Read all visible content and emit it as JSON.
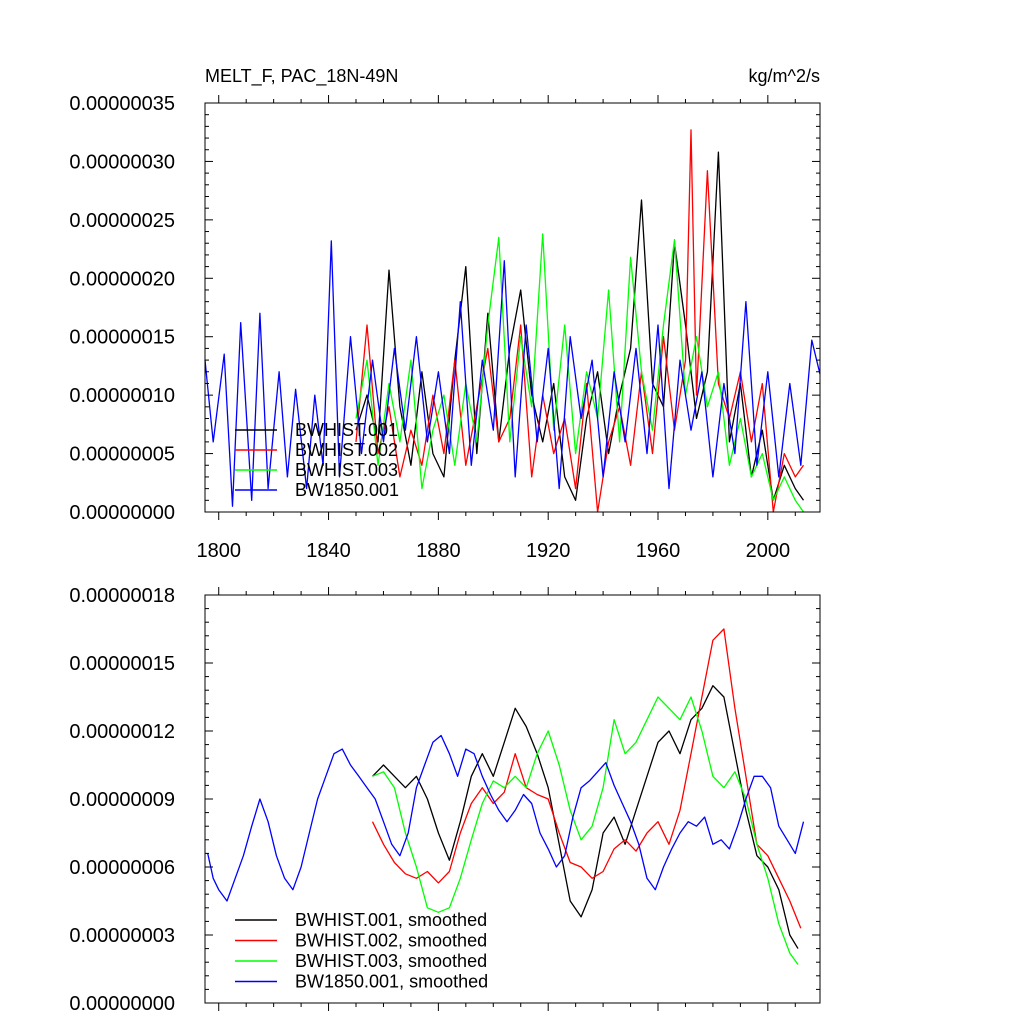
{
  "chart_data": [
    {
      "type": "line",
      "title": "MELT_F, PAC_18N-49N",
      "units": "kg/m^2/s",
      "xlabel": "",
      "ylabel": "",
      "xlim": [
        1795,
        2019
      ],
      "ylim": [
        0,
        3.5e-07
      ],
      "ytick_labels": [
        "0.00000000",
        "0.00000005",
        "0.00000010",
        "0.00000015",
        "0.00000020",
        "0.00000025",
        "0.00000030",
        "0.00000035"
      ],
      "xtick_labels": [
        "1800",
        "1840",
        "1880",
        "1920",
        "1960",
        "2000"
      ],
      "legend": [
        "BWHIST.001",
        "BWHIST.002",
        "BWHIST.003",
        "BW1850.001"
      ],
      "legend_position": "bottom-left",
      "colors": [
        "#000000",
        "#ff0000",
        "#00ff00",
        "#0000ff"
      ],
      "series": [
        {
          "name": "BWHIST.001",
          "x": [
            1850,
            1854,
            1858,
            1862,
            1866,
            1870,
            1874,
            1878,
            1882,
            1886,
            1890,
            1894,
            1898,
            1902,
            1906,
            1910,
            1914,
            1918,
            1922,
            1926,
            1930,
            1934,
            1938,
            1942,
            1946,
            1950,
            1954,
            1958,
            1962,
            1966,
            1970,
            1974,
            1978,
            1982,
            1986,
            1990,
            1994,
            1998,
            2002,
            2006,
            2010,
            2013
          ],
          "values": [
            7e-08,
            1e-07,
            6e-08,
            2.07e-07,
            9e-08,
            4e-08,
            1.2e-07,
            5e-08,
            3e-08,
            1.3e-07,
            2.1e-07,
            5e-08,
            1.7e-07,
            6e-08,
            1.4e-07,
            1.9e-07,
            1e-07,
            6e-08,
            1.1e-07,
            3e-08,
            1e-08,
            8e-08,
            1.2e-07,
            5e-08,
            1e-07,
            1.4e-07,
            2.67e-07,
            1.1e-07,
            9e-08,
            2.3e-07,
            1.6e-07,
            8e-08,
            1.2e-07,
            3.08e-07,
            6e-08,
            1.1e-07,
            3e-08,
            7e-08,
            1e-08,
            4e-08,
            2e-08,
            1e-08
          ]
        },
        {
          "name": "BWHIST.002",
          "x": [
            1850,
            1854,
            1858,
            1862,
            1866,
            1870,
            1874,
            1878,
            1882,
            1886,
            1890,
            1894,
            1898,
            1902,
            1906,
            1910,
            1914,
            1918,
            1922,
            1926,
            1930,
            1934,
            1938,
            1942,
            1946,
            1950,
            1954,
            1958,
            1962,
            1966,
            1970,
            1972,
            1974,
            1978,
            1982,
            1986,
            1990,
            1994,
            1998,
            2002,
            2006,
            2010,
            2013
          ],
          "values": [
            6e-08,
            1.6e-07,
            5e-08,
            9e-08,
            3e-08,
            7e-08,
            4e-08,
            1e-07,
            5e-08,
            1.3e-07,
            4e-08,
            9e-08,
            1.4e-07,
            6e-08,
            8e-08,
            1.6e-07,
            3e-08,
            1e-07,
            5e-08,
            8e-08,
            2e-08,
            1.1e-07,
            0.0,
            6e-08,
            9e-08,
            4e-08,
            1.2e-07,
            5e-08,
            1.5e-07,
            7e-08,
            1.3e-07,
            3.27e-07,
            1e-07,
            2.92e-07,
            1.1e-07,
            8e-08,
            1.2e-07,
            6e-08,
            1.1e-07,
            0.0,
            5e-08,
            3e-08,
            4e-08
          ]
        },
        {
          "name": "BWHIST.003",
          "x": [
            1850,
            1854,
            1858,
            1862,
            1866,
            1870,
            1874,
            1878,
            1882,
            1886,
            1890,
            1894,
            1898,
            1902,
            1906,
            1910,
            1914,
            1918,
            1922,
            1926,
            1930,
            1934,
            1938,
            1942,
            1946,
            1950,
            1954,
            1958,
            1962,
            1966,
            1970,
            1974,
            1978,
            1982,
            1986,
            1990,
            1994,
            1998,
            2002,
            2006,
            2010,
            2013
          ],
          "values": [
            8e-08,
            1.3e-07,
            4e-08,
            1.1e-07,
            6e-08,
            1.3e-07,
            2e-08,
            7e-08,
            1e-07,
            4e-08,
            1.1e-07,
            6e-08,
            1.6e-07,
            2.35e-07,
            6e-08,
            1.5e-07,
            9e-08,
            2.38e-07,
            7e-08,
            1.6e-07,
            5e-08,
            1.2e-07,
            8e-08,
            1.9e-07,
            6e-08,
            2.18e-07,
            1.2e-07,
            7e-08,
            1.6e-07,
            2.33e-07,
            1e-07,
            1.5e-07,
            9e-08,
            1.2e-07,
            4e-08,
            8e-08,
            3e-08,
            5e-08,
            1e-08,
            3e-08,
            1e-08,
            0.0
          ]
        },
        {
          "name": "BW1850.001",
          "x": [
            1795,
            1798,
            1802,
            1805,
            1808,
            1812,
            1815,
            1818,
            1822,
            1825,
            1828,
            1832,
            1835,
            1838,
            1841,
            1844,
            1848,
            1852,
            1856,
            1860,
            1864,
            1868,
            1872,
            1876,
            1880,
            1884,
            1888,
            1892,
            1896,
            1900,
            1904,
            1908,
            1912,
            1916,
            1920,
            1924,
            1928,
            1932,
            1936,
            1940,
            1944,
            1948,
            1952,
            1956,
            1960,
            1964,
            1968,
            1972,
            1976,
            1980,
            1984,
            1988,
            1992,
            1996,
            2000,
            2004,
            2008,
            2012,
            2016,
            2019
          ],
          "values": [
            1.3e-07,
            6e-08,
            1.35e-07,
            5e-09,
            1.62e-07,
            1e-08,
            1.7e-07,
            2e-08,
            1.2e-07,
            3e-08,
            1.05e-07,
            2e-08,
            1e-07,
            4e-08,
            2.32e-07,
            3e-08,
            1.5e-07,
            5e-08,
            1.3e-07,
            6e-08,
            1.4e-07,
            7e-08,
            1.5e-07,
            6e-08,
            1.2e-07,
            5e-08,
            1.8e-07,
            4e-08,
            1.3e-07,
            7e-08,
            2.15e-07,
            3e-08,
            1.6e-07,
            6e-08,
            1.4e-07,
            2e-08,
            1.5e-07,
            8e-08,
            1.3e-07,
            3e-08,
            1.2e-07,
            6e-08,
            1.4e-07,
            5e-08,
            1.6e-07,
            2e-08,
            1.3e-07,
            7e-08,
            1.2e-07,
            3e-08,
            1.1e-07,
            5e-08,
            1.8e-07,
            4e-08,
            1.2e-07,
            3e-08,
            1.1e-07,
            4e-08,
            1.47e-07,
            1.18e-07
          ]
        }
      ]
    },
    {
      "type": "line",
      "title": "",
      "xlabel": "",
      "ylabel": "",
      "xlim": [
        1795,
        2019
      ],
      "ylim": [
        0,
        1.8e-07
      ],
      "ytick_labels": [
        "0.00000000",
        "0.00000003",
        "0.00000006",
        "0.00000009",
        "0.00000012",
        "0.00000015",
        "0.00000018"
      ],
      "legend": [
        "BWHIST.001, smoothed",
        "BWHIST.002, smoothed",
        "BWHIST.003, smoothed",
        "BW1850.001, smoothed"
      ],
      "legend_position": "bottom-left",
      "colors": [
        "#000000",
        "#ff0000",
        "#00ff00",
        "#0000ff"
      ],
      "series": [
        {
          "name": "BWHIST.001, smoothed",
          "x": [
            1856,
            1860,
            1864,
            1868,
            1872,
            1876,
            1880,
            1884,
            1888,
            1892,
            1896,
            1900,
            1904,
            1908,
            1912,
            1916,
            1920,
            1924,
            1928,
            1932,
            1936,
            1940,
            1944,
            1948,
            1952,
            1956,
            1960,
            1964,
            1968,
            1972,
            1976,
            1980,
            1984,
            1988,
            1992,
            1996,
            2000,
            2004,
            2008,
            2011
          ],
          "values": [
            1e-07,
            1.05e-07,
            1e-07,
            9.5e-08,
            1e-07,
            9e-08,
            7.5e-08,
            6.3e-08,
            8e-08,
            1e-07,
            1.1e-07,
            1e-07,
            1.15e-07,
            1.3e-07,
            1.22e-07,
            1.1e-07,
            9.5e-08,
            7e-08,
            4.5e-08,
            3.8e-08,
            5e-08,
            7.5e-08,
            8.2e-08,
            7e-08,
            8.5e-08,
            1e-07,
            1.15e-07,
            1.2e-07,
            1.1e-07,
            1.25e-07,
            1.3e-07,
            1.4e-07,
            1.35e-07,
            1.1e-07,
            8.5e-08,
            6.5e-08,
            6e-08,
            5e-08,
            3e-08,
            2.4e-08
          ]
        },
        {
          "name": "BWHIST.002, smoothed",
          "x": [
            1856,
            1860,
            1864,
            1868,
            1872,
            1876,
            1880,
            1884,
            1888,
            1892,
            1896,
            1900,
            1904,
            1908,
            1912,
            1916,
            1920,
            1924,
            1928,
            1932,
            1936,
            1940,
            1944,
            1948,
            1952,
            1956,
            1960,
            1964,
            1968,
            1972,
            1976,
            1980,
            1984,
            1988,
            1992,
            1996,
            2000,
            2004,
            2008,
            2012
          ],
          "values": [
            8e-08,
            7e-08,
            6.2e-08,
            5.7e-08,
            5.5e-08,
            5.8e-08,
            5.3e-08,
            5.8e-08,
            7.5e-08,
            8.8e-08,
            9.5e-08,
            8.8e-08,
            9.3e-08,
            1.1e-07,
            9.5e-08,
            9.2e-08,
            9e-08,
            7.5e-08,
            6.2e-08,
            6e-08,
            5.5e-08,
            5.8e-08,
            6.8e-08,
            7.2e-08,
            6.7e-08,
            7.5e-08,
            8e-08,
            7e-08,
            8.5e-08,
            1.1e-07,
            1.35e-07,
            1.6e-07,
            1.65e-07,
            1.3e-07,
            1e-07,
            7e-08,
            6.5e-08,
            5.5e-08,
            4.5e-08,
            3.3e-08
          ]
        },
        {
          "name": "BWHIST.003, smoothed",
          "x": [
            1856,
            1860,
            1864,
            1868,
            1872,
            1876,
            1880,
            1884,
            1888,
            1892,
            1896,
            1900,
            1904,
            1908,
            1912,
            1916,
            1920,
            1924,
            1928,
            1932,
            1936,
            1940,
            1944,
            1948,
            1952,
            1956,
            1960,
            1964,
            1968,
            1972,
            1976,
            1980,
            1984,
            1988,
            1992,
            1996,
            2000,
            2004,
            2008,
            2011
          ],
          "values": [
            1e-07,
            1.02e-07,
            9.5e-08,
            7.5e-08,
            6e-08,
            4.2e-08,
            4e-08,
            4.2e-08,
            5.5e-08,
            7.2e-08,
            8.8e-08,
            9.8e-08,
            9.5e-08,
            1e-07,
            9.5e-08,
            1.1e-07,
            1.2e-07,
            1.05e-07,
            8.5e-08,
            7.2e-08,
            7.8e-08,
            9.5e-08,
            1.25e-07,
            1.1e-07,
            1.15e-07,
            1.25e-07,
            1.35e-07,
            1.3e-07,
            1.25e-07,
            1.35e-07,
            1.2e-07,
            1e-07,
            9.5e-08,
            1.02e-07,
            9e-08,
            7e-08,
            5.5e-08,
            3.5e-08,
            2.2e-08,
            1.7e-08
          ]
        },
        {
          "name": "BW1850.001, smoothed",
          "x": [
            1796,
            1798,
            1800,
            1803,
            1806,
            1809,
            1812,
            1815,
            1818,
            1821,
            1824,
            1827,
            1830,
            1833,
            1836,
            1839,
            1842,
            1845,
            1848,
            1851,
            1854,
            1857,
            1860,
            1863,
            1866,
            1869,
            1872,
            1875,
            1878,
            1881,
            1884,
            1887,
            1890,
            1893,
            1896,
            1899,
            1902,
            1905,
            1908,
            1911,
            1914,
            1917,
            1920,
            1923,
            1926,
            1929,
            1932,
            1935,
            1938,
            1941,
            1944,
            1947,
            1950,
            1953,
            1956,
            1959,
            1962,
            1965,
            1968,
            1971,
            1974,
            1977,
            1980,
            1983,
            1986,
            1989,
            1992,
            1995,
            1998,
            2001,
            2004,
            2007,
            2010,
            2013
          ],
          "values": [
            6.6e-08,
            5.5e-08,
            5e-08,
            4.5e-08,
            5.5e-08,
            6.5e-08,
            7.8e-08,
            9e-08,
            8e-08,
            6.5e-08,
            5.5e-08,
            5e-08,
            6e-08,
            7.5e-08,
            9e-08,
            1e-07,
            1.1e-07,
            1.12e-07,
            1.05e-07,
            1e-07,
            9.5e-08,
            9e-08,
            8e-08,
            7e-08,
            6.5e-08,
            7.5e-08,
            9.5e-08,
            1.05e-07,
            1.15e-07,
            1.18e-07,
            1.1e-07,
            1e-07,
            1.12e-07,
            1.1e-07,
            1e-07,
            9.2e-08,
            8.5e-08,
            8e-08,
            8.5e-08,
            9.2e-08,
            8.8e-08,
            7.5e-08,
            6.8e-08,
            6e-08,
            6.5e-08,
            8.2e-08,
            9.5e-08,
            9.8e-08,
            1.02e-07,
            1.06e-07,
            9.6e-08,
            8.8e-08,
            8e-08,
            7e-08,
            5.5e-08,
            5e-08,
            6e-08,
            6.8e-08,
            7.5e-08,
            8e-08,
            7.8e-08,
            8.2e-08,
            7e-08,
            7.2e-08,
            6.8e-08,
            7.8e-08,
            9e-08,
            1e-07,
            1e-07,
            9.5e-08,
            7.8e-08,
            7.2e-08,
            6.6e-08,
            8e-08
          ]
        }
      ]
    }
  ]
}
